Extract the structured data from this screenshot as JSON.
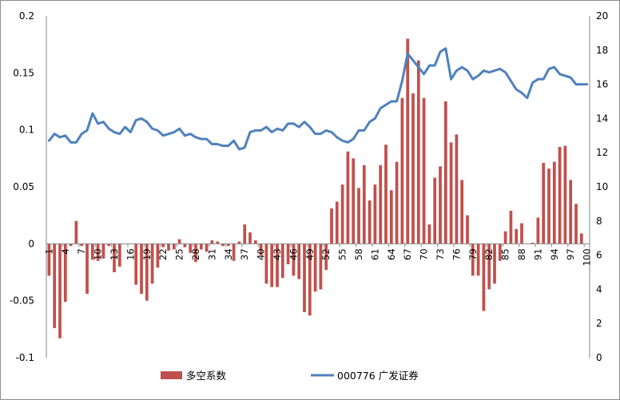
{
  "chart_data": {
    "type": "bar+line",
    "title": "",
    "x": [
      1,
      2,
      3,
      4,
      5,
      6,
      7,
      8,
      9,
      10,
      11,
      12,
      13,
      14,
      15,
      16,
      17,
      18,
      19,
      20,
      21,
      22,
      23,
      24,
      25,
      26,
      27,
      28,
      29,
      30,
      31,
      32,
      33,
      34,
      35,
      36,
      37,
      38,
      39,
      40,
      41,
      42,
      43,
      44,
      45,
      46,
      47,
      48,
      49,
      50,
      51,
      52,
      53,
      54,
      55,
      56,
      57,
      58,
      59,
      60,
      61,
      62,
      63,
      64,
      65,
      66,
      67,
      68,
      69,
      70,
      71,
      72,
      73,
      74,
      75,
      76,
      77,
      78,
      79,
      80,
      81,
      82,
      83,
      84,
      85,
      86,
      87,
      88,
      89,
      90,
      91,
      92,
      93,
      94,
      95,
      96,
      97,
      98,
      99,
      100
    ],
    "x_tick_labels": [
      "1",
      "4",
      "7",
      "10",
      "13",
      "16",
      "19",
      "22",
      "25",
      "28",
      "31",
      "34",
      "37",
      "40",
      "43",
      "46",
      "49",
      "52",
      "55",
      "58",
      "61",
      "64",
      "67",
      "70",
      "73",
      "76",
      "79",
      "82",
      "85",
      "88",
      "91",
      "94",
      "97",
      "100"
    ],
    "y_left": {
      "range": [
        -0.1,
        0.2
      ],
      "ticks": [
        "-0.1",
        "-0.05",
        "0",
        "0.05",
        "0.1",
        "0.15",
        "0.2"
      ]
    },
    "y_right": {
      "range": [
        0,
        20
      ],
      "ticks": [
        "0",
        "2",
        "4",
        "6",
        "8",
        "10",
        "12",
        "14",
        "16",
        "18",
        "20"
      ]
    },
    "series": [
      {
        "name": "多空系数",
        "type": "bar",
        "axis": "left",
        "color": "#c0504d",
        "values": [
          -0.028,
          -0.074,
          -0.083,
          -0.051,
          -0.002,
          0.02,
          -0.002,
          -0.044,
          -0.014,
          -0.015,
          -0.013,
          -0.002,
          -0.025,
          -0.02,
          0.0,
          0.0,
          -0.036,
          -0.044,
          -0.05,
          -0.035,
          -0.021,
          -0.003,
          -0.006,
          -0.005,
          0.004,
          -0.003,
          -0.008,
          -0.016,
          -0.005,
          -0.007,
          0.003,
          0.002,
          -0.002,
          -0.002,
          -0.015,
          0.002,
          0.017,
          0.01,
          0.003,
          -0.01,
          -0.035,
          -0.038,
          -0.038,
          -0.03,
          -0.018,
          -0.028,
          -0.031,
          -0.06,
          -0.063,
          -0.042,
          -0.04,
          -0.023,
          0.031,
          0.037,
          0.052,
          0.081,
          0.075,
          0.049,
          0.069,
          0.038,
          0.052,
          0.069,
          0.087,
          0.047,
          0.072,
          0.128,
          0.18,
          0.132,
          0.161,
          0.128,
          0.017,
          0.058,
          0.068,
          0.125,
          0.089,
          0.096,
          0.056,
          0.025,
          -0.028,
          -0.028,
          -0.059,
          -0.04,
          -0.035,
          -0.015,
          0.011,
          0.029,
          0.013,
          0.018,
          0.0,
          0.001,
          0.023,
          0.071,
          0.066,
          0.072,
          0.085,
          0.086,
          0.056,
          0.035,
          0.009,
          0.0
        ]
      },
      {
        "name": "000776 广发证券",
        "type": "line",
        "axis": "right",
        "color": "#4f81bd",
        "values": [
          12.7,
          13.1,
          12.9,
          13.0,
          12.6,
          12.6,
          13.1,
          13.3,
          14.3,
          13.7,
          13.8,
          13.4,
          13.2,
          13.1,
          13.5,
          13.2,
          13.9,
          14.0,
          13.8,
          13.4,
          13.3,
          13.0,
          13.1,
          13.2,
          13.4,
          13.0,
          13.1,
          12.9,
          12.8,
          12.8,
          12.5,
          12.5,
          12.4,
          12.4,
          12.7,
          12.2,
          12.3,
          13.2,
          13.3,
          13.3,
          13.5,
          13.2,
          13.4,
          13.3,
          13.7,
          13.7,
          13.5,
          13.8,
          13.5,
          13.1,
          13.1,
          13.3,
          13.2,
          12.9,
          12.7,
          12.6,
          12.8,
          13.3,
          13.3,
          13.8,
          14.0,
          14.6,
          14.8,
          15.0,
          15.0,
          16.2,
          17.8,
          17.4,
          17.0,
          16.6,
          17.1,
          17.1,
          17.9,
          18.1,
          16.3,
          16.8,
          17.0,
          16.8,
          16.3,
          16.5,
          16.8,
          16.7,
          16.8,
          16.9,
          16.7,
          16.2,
          15.7,
          15.5,
          15.2,
          16.1,
          16.3,
          16.3,
          16.9,
          17.0,
          16.6,
          16.5,
          16.4,
          16.0,
          16.0,
          16.0
        ]
      }
    ],
    "grid": false,
    "legend_position": "bottom"
  }
}
